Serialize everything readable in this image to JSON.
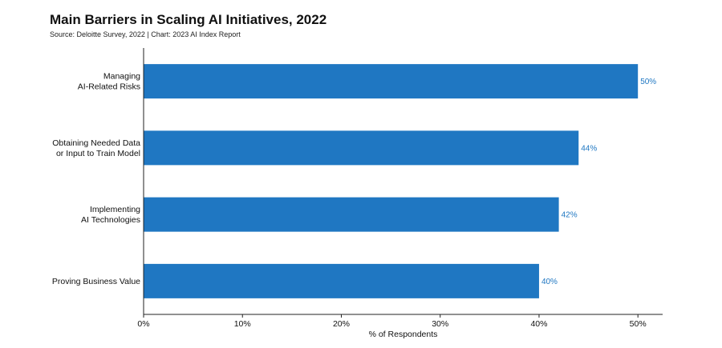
{
  "header": {
    "title": "Main Barriers in Scaling AI Initiatives, 2022",
    "subtitle": "Source: Deloitte Survey, 2022 | Chart: 2023 AI Index Report"
  },
  "colors": {
    "bar": "#1f77c2",
    "value_label": "#1f77c2",
    "axis": "#222222"
  },
  "chart_data": {
    "type": "bar",
    "orientation": "horizontal",
    "title": "Main Barriers in Scaling AI Initiatives, 2022",
    "subtitle": "Source: Deloitte Survey, 2022 | Chart: 2023 AI Index Report",
    "categories": [
      [
        "Managing",
        "AI-Related Risks"
      ],
      [
        "Obtaining Needed Data",
        "or Input to Train Model"
      ],
      [
        "Implementing",
        "AI Technologies"
      ],
      [
        "Proving Business Value"
      ]
    ],
    "values": [
      50,
      44,
      42,
      40
    ],
    "data_labels": [
      "50%",
      "44%",
      "42%",
      "40%"
    ],
    "xlabel": "% of Respondents",
    "ylabel": "",
    "xlim": [
      0,
      52.5
    ],
    "xticks": [
      0,
      10,
      20,
      30,
      40,
      50
    ],
    "xtick_labels": [
      "0%",
      "10%",
      "20%",
      "30%",
      "40%",
      "50%"
    ],
    "grid": false,
    "legend": "none"
  }
}
